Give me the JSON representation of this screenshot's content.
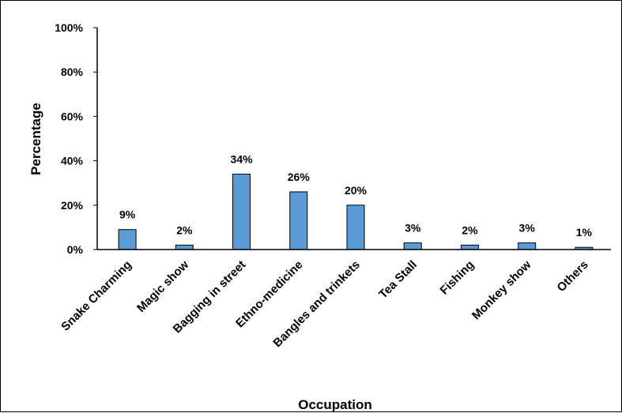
{
  "chart_data": {
    "type": "bar",
    "title": "",
    "xlabel": "Occupation",
    "ylabel": "Percentage",
    "categories": [
      "Snake Charming",
      "Magic show",
      "Bagging in street",
      "Ethno-medicine",
      "Bangles and trinkets",
      "Tea Stall",
      "Fishing",
      "Monkey show",
      "Others"
    ],
    "values": [
      9,
      2,
      34,
      26,
      20,
      3,
      2,
      3,
      1
    ],
    "data_labels": [
      "9%",
      "2%",
      "34%",
      "26%",
      "20%",
      "3%",
      "2%",
      "3%",
      "1%"
    ],
    "ylim": [
      0,
      100
    ],
    "yticks": [
      0,
      20,
      40,
      60,
      80,
      100
    ],
    "ytick_labels": [
      "0%",
      "20%",
      "40%",
      "60%",
      "80%",
      "100%"
    ],
    "grid": false,
    "legend": "none",
    "bar_color": "#5b9bd5",
    "bar_edge_color": "#000000"
  }
}
